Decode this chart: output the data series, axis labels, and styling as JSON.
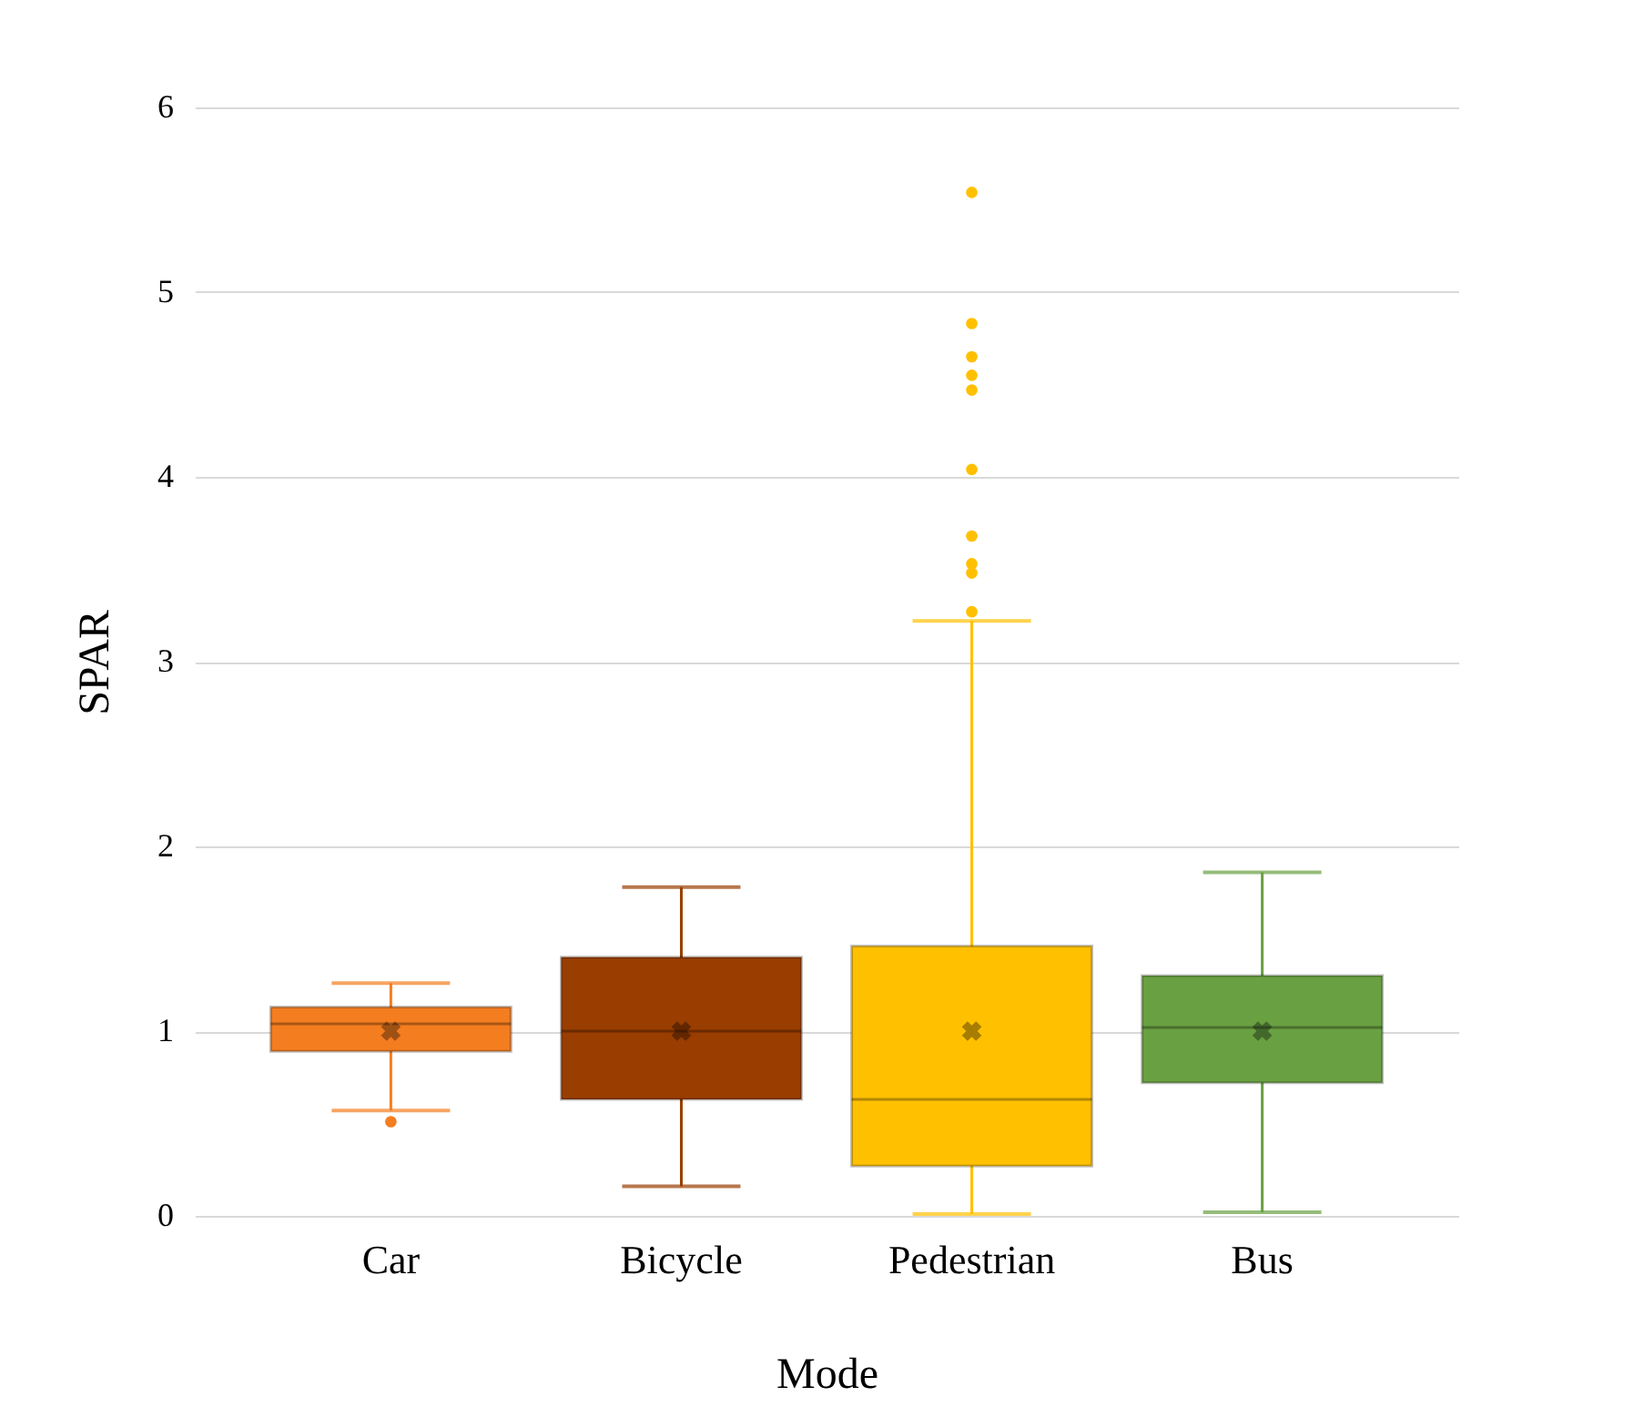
{
  "chart_data": {
    "type": "box",
    "xlabel": "Mode",
    "ylabel": "SPAR",
    "categories": [
      "Car",
      "Bicycle",
      "Pedestrian",
      "Bus"
    ],
    "colors": [
      "#f47d20",
      "#993d00",
      "#ffc000",
      "#69a042"
    ],
    "boxes": [
      {
        "low": 0.57,
        "q1": 0.89,
        "median": 1.04,
        "q3": 1.13,
        "high": 1.26,
        "mean": 1.0,
        "outliers": [
          0.51
        ]
      },
      {
        "low": 0.16,
        "q1": 0.63,
        "median": 1.0,
        "q3": 1.4,
        "high": 1.78,
        "mean": 1.0
      },
      {
        "low": 0.01,
        "q1": 0.27,
        "median": 0.63,
        "q3": 1.46,
        "high": 3.22,
        "mean": 1.0,
        "outliers": [
          5.54,
          4.83,
          4.65,
          4.55,
          4.47,
          4.04,
          3.68,
          3.53,
          3.48,
          3.27
        ]
      },
      {
        "low": 0.02,
        "q1": 0.72,
        "median": 1.02,
        "q3": 1.3,
        "high": 1.86,
        "mean": 1.0
      }
    ],
    "ylim": [
      0,
      6
    ],
    "yticks": [
      0,
      1,
      2,
      3,
      4,
      5,
      6
    ],
    "grid": "y"
  }
}
